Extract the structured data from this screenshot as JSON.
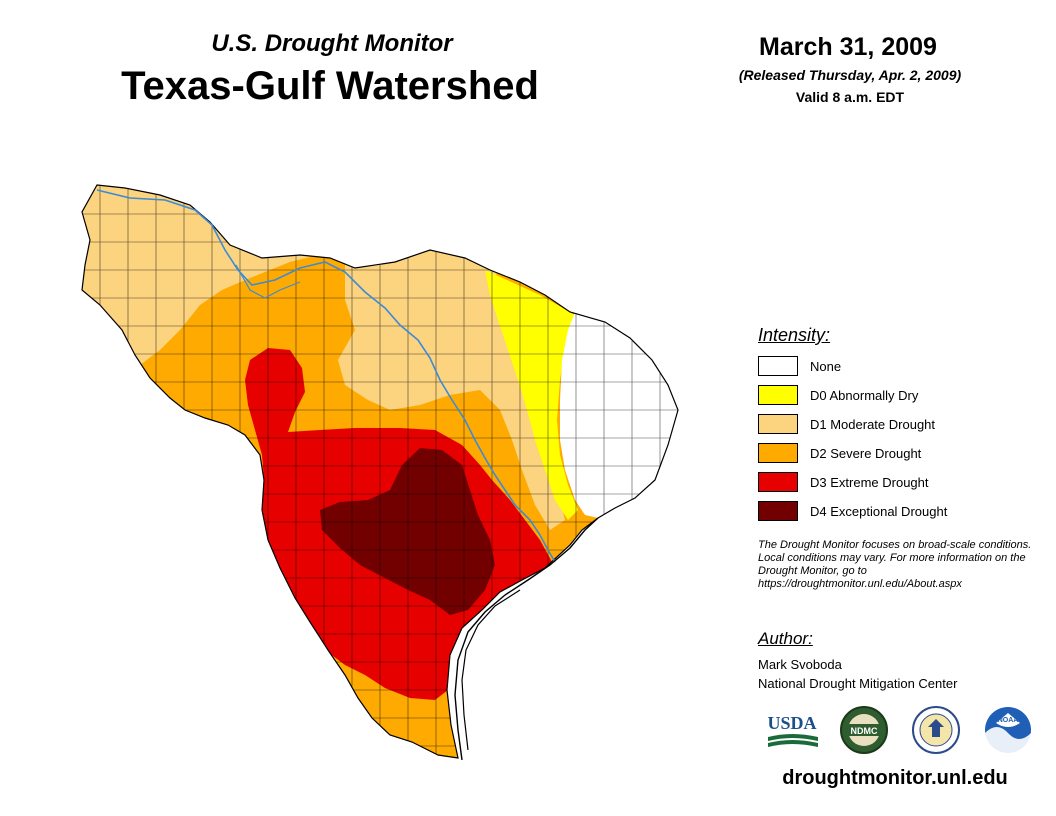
{
  "header": {
    "subtitle": "U.S. Drought Monitor",
    "title": "Texas-Gulf Watershed",
    "date": "March 31, 2009",
    "released": "(Released Thursday, Apr. 2, 2009)",
    "valid": "Valid 8 a.m. EDT"
  },
  "legend": {
    "heading": "Intensity:",
    "items": [
      {
        "label": "None",
        "color": "#ffffff"
      },
      {
        "label": "D0 Abnormally Dry",
        "color": "#ffff00"
      },
      {
        "label": "D1 Moderate Drought",
        "color": "#fcd37f"
      },
      {
        "label": "D2 Severe Drought",
        "color": "#ffaa00"
      },
      {
        "label": "D3 Extreme Drought",
        "color": "#e60000"
      },
      {
        "label": "D4 Exceptional Drought",
        "color": "#730000"
      }
    ]
  },
  "note": "The Drought Monitor focuses on broad-scale conditions. Local conditions may vary. For more information on the Drought Monitor, go to https://droughtmonitor.unl.edu/About.aspx",
  "author": {
    "heading": "Author:",
    "name": "Mark Svoboda",
    "org": "National Drought Mitigation Center"
  },
  "logos": {
    "usda": "USDA",
    "ndmc": "NDMC",
    "noaa": "NOAA"
  },
  "site": "droughtmonitor.unl.edu",
  "colors": {
    "river": "#3b8bd8",
    "county_lines": "#000000"
  }
}
